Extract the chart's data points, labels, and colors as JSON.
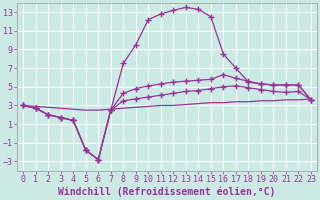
{
  "xlabel": "Windchill (Refroidissement éolien,°C)",
  "background_color": "#cceae4",
  "grid_color": "#ffffff",
  "line_color": "#993399",
  "xlim": [
    -0.5,
    23.5
  ],
  "ylim": [
    -4,
    14
  ],
  "xticks": [
    0,
    1,
    2,
    3,
    4,
    5,
    6,
    7,
    8,
    9,
    10,
    11,
    12,
    13,
    14,
    15,
    16,
    17,
    18,
    19,
    20,
    21,
    22,
    23
  ],
  "yticks": [
    -3,
    -1,
    1,
    3,
    5,
    7,
    9,
    11,
    13
  ],
  "line1_x": [
    0,
    1,
    2,
    3,
    4,
    5,
    6,
    7,
    8,
    9,
    10,
    11,
    12,
    13,
    14,
    15,
    16,
    17,
    18,
    19,
    20,
    21,
    22,
    23
  ],
  "line1_y": [
    3.0,
    2.7,
    2.0,
    1.7,
    1.4,
    -1.8,
    -2.8,
    2.5,
    7.5,
    9.5,
    12.2,
    12.8,
    13.2,
    13.5,
    13.3,
    12.5,
    8.5,
    7.0,
    5.5,
    5.3,
    5.2,
    5.2,
    5.2,
    3.6
  ],
  "line2_x": [
    0,
    1,
    2,
    3,
    4,
    5,
    6,
    7,
    8,
    9,
    10,
    11,
    12,
    13,
    14,
    15,
    16,
    17,
    18,
    19,
    20,
    21,
    22,
    23
  ],
  "line2_y": [
    3.0,
    2.7,
    2.0,
    1.7,
    1.4,
    -1.8,
    -2.8,
    2.5,
    4.3,
    4.8,
    5.1,
    5.3,
    5.5,
    5.6,
    5.7,
    5.8,
    6.3,
    5.9,
    5.6,
    5.3,
    5.2,
    5.2,
    5.2,
    3.6
  ],
  "line3_x": [
    0,
    1,
    2,
    3,
    4,
    5,
    6,
    7,
    8,
    9,
    10,
    11,
    12,
    13,
    14,
    15,
    16,
    17,
    18,
    19,
    20,
    21,
    22,
    23
  ],
  "line3_y": [
    3.0,
    2.7,
    2.0,
    1.7,
    1.4,
    -1.8,
    -2.8,
    2.5,
    3.5,
    3.7,
    3.9,
    4.1,
    4.3,
    4.5,
    4.6,
    4.8,
    5.0,
    5.1,
    4.9,
    4.7,
    4.5,
    4.4,
    4.5,
    3.6
  ],
  "line4_x": [
    0,
    1,
    2,
    3,
    4,
    5,
    6,
    7,
    8,
    9,
    10,
    11,
    12,
    13,
    14,
    15,
    16,
    17,
    18,
    19,
    20,
    21,
    22,
    23
  ],
  "line4_y": [
    3.0,
    2.9,
    2.8,
    2.7,
    2.6,
    2.5,
    2.5,
    2.6,
    2.7,
    2.8,
    2.9,
    3.0,
    3.0,
    3.1,
    3.2,
    3.3,
    3.3,
    3.4,
    3.4,
    3.5,
    3.5,
    3.6,
    3.6,
    3.7
  ],
  "marker_size": 2.5,
  "font_size": 6,
  "xlabel_font_size": 7
}
